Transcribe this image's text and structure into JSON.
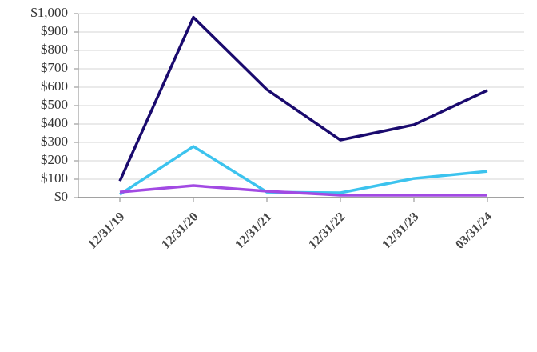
{
  "chart_data": {
    "type": "line",
    "categories": [
      "12/31/19",
      "12/31/20",
      "12/31/21",
      "12/31/22",
      "12/31/23",
      "03/31/24"
    ],
    "series": [
      {
        "color": "#1a0a6e",
        "values": [
          90,
          980,
          587,
          313,
          396,
          583
        ]
      },
      {
        "color": "#3cc3ee",
        "values": [
          17,
          278,
          30,
          26,
          104,
          143
        ]
      },
      {
        "color": "#a24ae3",
        "values": [
          30,
          65,
          35,
          13,
          13,
          13
        ]
      }
    ],
    "ylim": [
      0,
      1000
    ],
    "yticks": [
      {
        "value": 0,
        "label": "$0"
      },
      {
        "value": 100,
        "label": "$100"
      },
      {
        "value": 200,
        "label": "$200"
      },
      {
        "value": 300,
        "label": "$300"
      },
      {
        "value": 400,
        "label": "$400"
      },
      {
        "value": 500,
        "label": "$500"
      },
      {
        "value": 600,
        "label": "$600"
      },
      {
        "value": 700,
        "label": "$700"
      },
      {
        "value": 800,
        "label": "$800"
      },
      {
        "value": 900,
        "label": "$900"
      },
      {
        "value": 1000,
        "label": "$1,000"
      }
    ],
    "grid": true
  }
}
